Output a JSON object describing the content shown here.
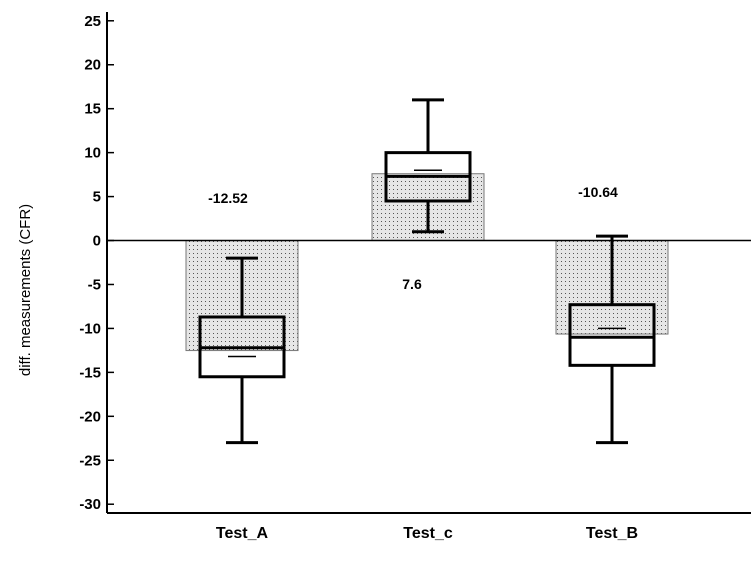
{
  "chart_data": {
    "type": "bar",
    "title": "",
    "xlabel": "",
    "ylabel": "diff. measurements (CFR)",
    "ylim": [
      -31,
      26
    ],
    "yticks": [
      25,
      20,
      15,
      10,
      5,
      0,
      -5,
      -10,
      -15,
      -20,
      -25,
      -30
    ],
    "ytick_labels": [
      "25",
      "20",
      "15",
      "10",
      "5",
      "0",
      "-5",
      "-10",
      "-15",
      "-20",
      "-25",
      "-30"
    ],
    "categories": [
      "Test_A",
      "Test_c",
      "Test_B"
    ],
    "values": [
      -12.52,
      7.6,
      -10.64
    ],
    "value_labels": [
      "-12.52",
      "7.6",
      "-10.64"
    ],
    "boxplots": [
      {
        "category": "Test_A",
        "whisker_low": -23,
        "q1": -15.5,
        "median": -12.2,
        "q3": -8.7,
        "whisker_high": -2,
        "mean": -13.2
      },
      {
        "category": "Test_c",
        "whisker_low": 1,
        "q1": 4.5,
        "median": 7.3,
        "q3": 10,
        "whisker_high": 16,
        "mean": 8
      },
      {
        "category": "Test_B",
        "whisker_low": -23,
        "q1": -14.2,
        "median": -11,
        "q3": -7.3,
        "whisker_high": 0.5,
        "mean": -10
      }
    ],
    "fill_pattern": "dotted",
    "colors": {
      "bar_fill": "#e6e6e6",
      "bar_dots": "#555555",
      "line": "#000000",
      "background": "#ffffff"
    }
  }
}
